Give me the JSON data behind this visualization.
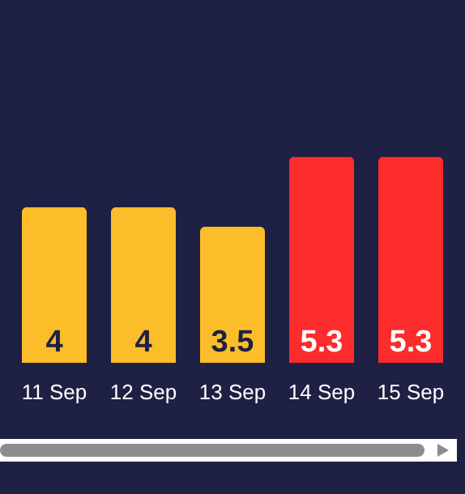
{
  "chart_data": {
    "type": "bar",
    "categories": [
      "11 Sep",
      "12 Sep",
      "13 Sep",
      "14 Sep",
      "15 Sep"
    ],
    "values": [
      4,
      4,
      3.5,
      5.3,
      5.3
    ],
    "colors": [
      "#fbbd2a",
      "#fbbd2a",
      "#fbbd2a",
      "#fd2b2c",
      "#fd2b2c"
    ],
    "data_labels": true,
    "tick_labels": "x"
  }
}
